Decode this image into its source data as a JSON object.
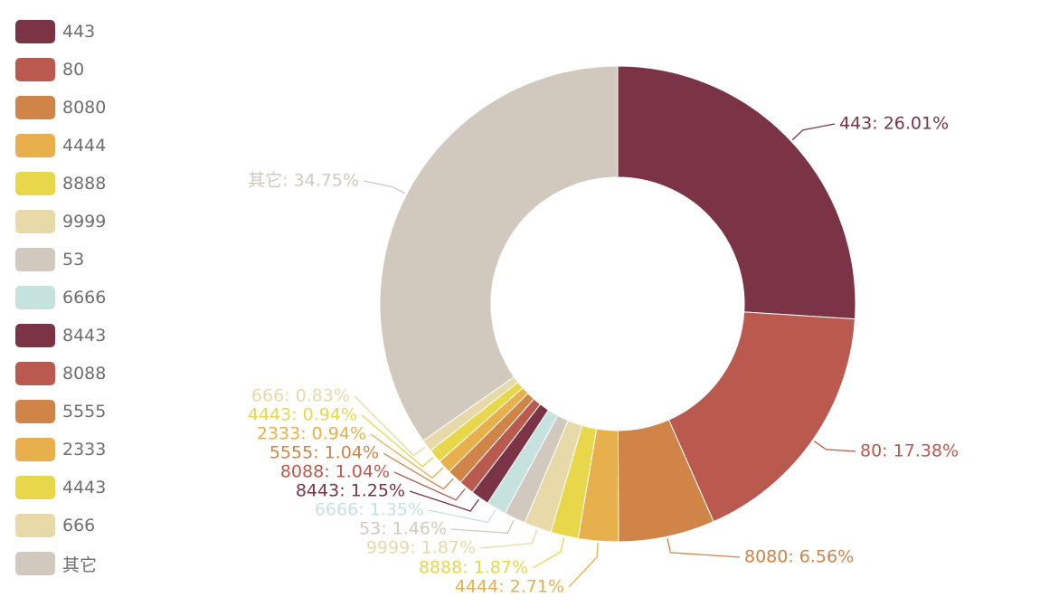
{
  "chart_data": {
    "type": "pie",
    "donut": true,
    "legend_position": "left",
    "slices": [
      {
        "name": "443",
        "label": "443: 26.01%",
        "value": 26.01,
        "color": "#7A3446"
      },
      {
        "name": "80",
        "label": "80: 17.38%",
        "value": 17.38,
        "color": "#BA5A4E"
      },
      {
        "name": "8080",
        "label": "8080: 6.56%",
        "value": 6.56,
        "color": "#D18447"
      },
      {
        "name": "4444",
        "label": "4444: 2.71%",
        "value": 2.71,
        "color": "#E8B04C"
      },
      {
        "name": "8888",
        "label": "8888: 1.87%",
        "value": 1.87,
        "color": "#E8D74A"
      },
      {
        "name": "9999",
        "label": "9999: 1.87%",
        "value": 1.87,
        "color": "#E7D9A8"
      },
      {
        "name": "53",
        "label": "53: 1.46%",
        "value": 1.46,
        "color": "#D1C9BD"
      },
      {
        "name": "6666",
        "label": "6666: 1.35%",
        "value": 1.35,
        "color": "#C5E2DE"
      },
      {
        "name": "8443",
        "label": "8443: 1.25%",
        "value": 1.25,
        "color": "#7A3446"
      },
      {
        "name": "8088",
        "label": "8088: 1.04%",
        "value": 1.04,
        "color": "#BA5A4E"
      },
      {
        "name": "5555",
        "label": "5555: 1.04%",
        "value": 1.04,
        "color": "#D18447"
      },
      {
        "name": "2333",
        "label": "2333: 0.94%",
        "value": 0.94,
        "color": "#E8B04C"
      },
      {
        "name": "4443",
        "label": "4443: 0.94%",
        "value": 0.94,
        "color": "#E8D74A"
      },
      {
        "name": "666",
        "label": "666: 0.83%",
        "value": 0.83,
        "color": "#E7D9A8"
      },
      {
        "name": "其它",
        "label": "其它: 34.75%",
        "value": 34.75,
        "color": "#D1C9BD"
      }
    ]
  }
}
